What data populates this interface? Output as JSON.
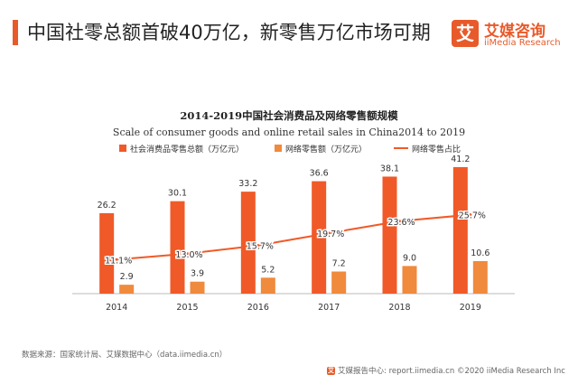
{
  "header": {
    "title": "中国社零总额首破40万亿，新零售万亿市场可期"
  },
  "logo": {
    "mark": "艾",
    "name": "艾媒咨询",
    "sub": "iiMedia Research"
  },
  "colors": {
    "accent": "#e85a2a",
    "total_bar": "#f05a28",
    "online_bar": "#f08a3c",
    "line": "#f05a28"
  },
  "chart_data": {
    "type": "bar",
    "title": "2014-2019中国社会消费品及网络零售额规模",
    "subtitle": "Scale of consumer goods and online retail sales in China2014 to 2019",
    "categories": [
      "2014",
      "2015",
      "2016",
      "2017",
      "2018",
      "2019"
    ],
    "series": [
      {
        "name": "社会消费品零售总额（万亿元）",
        "kind": "bar",
        "values": [
          26.2,
          30.1,
          33.2,
          36.6,
          38.1,
          41.2
        ],
        "labels": [
          "26.2",
          "30.1",
          "33.2",
          "36.6",
          "38.1",
          "41.2"
        ]
      },
      {
        "name": "网络零售额（万亿元）",
        "kind": "bar",
        "values": [
          2.9,
          3.9,
          5.2,
          7.2,
          9.0,
          10.6
        ],
        "labels": [
          "2.9",
          "3.9",
          "5.2",
          "7.2",
          "9.0",
          "10.6"
        ]
      },
      {
        "name": "网络零售占比",
        "kind": "line",
        "axis": "secondary",
        "values": [
          11.1,
          13.0,
          15.7,
          19.7,
          23.6,
          25.7
        ],
        "labels": [
          "11.1%",
          "13.0%",
          "15.7%",
          "19.7%",
          "23.6%",
          "25.7%"
        ]
      }
    ],
    "ylim": [
      0,
      50
    ],
    "y2lim": [
      0,
      50
    ],
    "legend": "top",
    "grid": false,
    "xlabel": "",
    "ylabel": ""
  },
  "source": "数据来源：国家统计局、艾媒数据中心（data.iimedia.cn）",
  "footer": {
    "icon": "艾",
    "text": "艾媒报告中心: report.iimedia.cn ©2020 iiMedia Research Inc"
  }
}
